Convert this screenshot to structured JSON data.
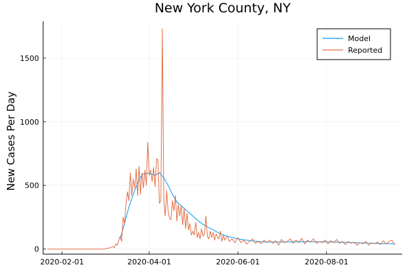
{
  "chart_data": {
    "type": "line",
    "title": "New York County, NY",
    "xlabel": "",
    "ylabel": "New Cases Per Day",
    "x_axis_type": "date",
    "xlim": [
      "2020-01-19",
      "2020-09-22"
    ],
    "ylim": [
      -40,
      1790
    ],
    "x_ticks": [
      "2020-02-01",
      "2020-04-01",
      "2020-06-01",
      "2020-08-01"
    ],
    "y_ticks": [
      0,
      500,
      1000,
      1500
    ],
    "grid": true,
    "legend": "top-right",
    "colors": {
      "Model": "#009af9",
      "Reported": "#e26f46"
    },
    "series": [
      {
        "name": "Model",
        "points": [
          [
            "2020-03-12",
            80
          ],
          [
            "2020-03-15",
            200
          ],
          [
            "2020-03-18",
            330
          ],
          [
            "2020-03-21",
            430
          ],
          [
            "2020-03-24",
            520
          ],
          [
            "2020-03-27",
            585
          ],
          [
            "2020-03-30",
            595
          ],
          [
            "2020-04-02",
            590
          ],
          [
            "2020-04-05",
            580
          ],
          [
            "2020-04-08",
            600
          ],
          [
            "2020-04-11",
            560
          ],
          [
            "2020-04-14",
            500
          ],
          [
            "2020-04-17",
            430
          ],
          [
            "2020-04-20",
            370
          ],
          [
            "2020-04-24",
            330
          ],
          [
            "2020-04-28",
            290
          ],
          [
            "2020-05-02",
            250
          ],
          [
            "2020-05-06",
            210
          ],
          [
            "2020-05-10",
            180
          ],
          [
            "2020-05-15",
            150
          ],
          [
            "2020-05-20",
            120
          ],
          [
            "2020-05-25",
            100
          ],
          [
            "2020-06-01",
            80
          ],
          [
            "2020-06-10",
            65
          ],
          [
            "2020-06-20",
            55
          ],
          [
            "2020-07-01",
            55
          ],
          [
            "2020-07-15",
            58
          ],
          [
            "2020-08-01",
            57
          ],
          [
            "2020-08-15",
            52
          ],
          [
            "2020-09-01",
            45
          ],
          [
            "2020-09-10",
            42
          ],
          [
            "2020-09-17",
            42
          ]
        ]
      },
      {
        "name": "Reported",
        "points": [
          [
            "2020-01-22",
            0
          ],
          [
            "2020-02-01",
            0
          ],
          [
            "2020-02-15",
            0
          ],
          [
            "2020-03-01",
            0
          ],
          [
            "2020-03-03",
            5
          ],
          [
            "2020-03-05",
            10
          ],
          [
            "2020-03-07",
            20
          ],
          [
            "2020-03-08",
            10
          ],
          [
            "2020-03-09",
            40
          ],
          [
            "2020-03-10",
            30
          ],
          [
            "2020-03-11",
            70
          ],
          [
            "2020-03-12",
            100
          ],
          [
            "2020-03-13",
            60
          ],
          [
            "2020-03-14",
            250
          ],
          [
            "2020-03-15",
            200
          ],
          [
            "2020-03-16",
            350
          ],
          [
            "2020-03-17",
            450
          ],
          [
            "2020-03-18",
            380
          ],
          [
            "2020-03-19",
            600
          ],
          [
            "2020-03-20",
            420
          ],
          [
            "2020-03-21",
            550
          ],
          [
            "2020-03-22",
            480
          ],
          [
            "2020-03-23",
            630
          ],
          [
            "2020-03-24",
            420
          ],
          [
            "2020-03-25",
            650
          ],
          [
            "2020-03-26",
            430
          ],
          [
            "2020-03-27",
            600
          ],
          [
            "2020-03-28",
            480
          ],
          [
            "2020-03-29",
            620
          ],
          [
            "2020-03-30",
            500
          ],
          [
            "2020-03-31",
            840
          ],
          [
            "2020-04-01",
            580
          ],
          [
            "2020-04-02",
            620
          ],
          [
            "2020-04-03",
            530
          ],
          [
            "2020-04-04",
            640
          ],
          [
            "2020-04-05",
            490
          ],
          [
            "2020-04-06",
            710
          ],
          [
            "2020-04-07",
            700
          ],
          [
            "2020-04-08",
            360
          ],
          [
            "2020-04-09",
            380
          ],
          [
            "2020-04-10",
            1730
          ],
          [
            "2020-04-11",
            380
          ],
          [
            "2020-04-12",
            260
          ],
          [
            "2020-04-13",
            460
          ],
          [
            "2020-04-14",
            300
          ],
          [
            "2020-04-15",
            240
          ],
          [
            "2020-04-16",
            230
          ],
          [
            "2020-04-17",
            380
          ],
          [
            "2020-04-18",
            300
          ],
          [
            "2020-04-19",
            420
          ],
          [
            "2020-04-20",
            220
          ],
          [
            "2020-04-21",
            350
          ],
          [
            "2020-04-22",
            260
          ],
          [
            "2020-04-23",
            340
          ],
          [
            "2020-04-24",
            190
          ],
          [
            "2020-04-25",
            320
          ],
          [
            "2020-04-26",
            160
          ],
          [
            "2020-04-27",
            280
          ],
          [
            "2020-04-28",
            150
          ],
          [
            "2020-04-29",
            200
          ],
          [
            "2020-04-30",
            110
          ],
          [
            "2020-05-01",
            140
          ],
          [
            "2020-05-02",
            110
          ],
          [
            "2020-05-03",
            210
          ],
          [
            "2020-05-04",
            90
          ],
          [
            "2020-05-05",
            130
          ],
          [
            "2020-05-06",
            80
          ],
          [
            "2020-05-07",
            160
          ],
          [
            "2020-05-08",
            100
          ],
          [
            "2020-05-09",
            120
          ],
          [
            "2020-05-10",
            260
          ],
          [
            "2020-05-11",
            100
          ],
          [
            "2020-05-12",
            80
          ],
          [
            "2020-05-13",
            140
          ],
          [
            "2020-05-14",
            90
          ],
          [
            "2020-05-15",
            130
          ],
          [
            "2020-05-16",
            70
          ],
          [
            "2020-05-17",
            120
          ],
          [
            "2020-05-18",
            90
          ],
          [
            "2020-05-19",
            80
          ],
          [
            "2020-05-20",
            140
          ],
          [
            "2020-05-21",
            60
          ],
          [
            "2020-05-22",
            110
          ],
          [
            "2020-05-23",
            70
          ],
          [
            "2020-05-24",
            90
          ],
          [
            "2020-05-25",
            100
          ],
          [
            "2020-05-26",
            60
          ],
          [
            "2020-05-28",
            80
          ],
          [
            "2020-05-30",
            50
          ],
          [
            "2020-06-01",
            90
          ],
          [
            "2020-06-03",
            50
          ],
          [
            "2020-06-05",
            70
          ],
          [
            "2020-06-07",
            40
          ],
          [
            "2020-06-09",
            60
          ],
          [
            "2020-06-11",
            80
          ],
          [
            "2020-06-13",
            45
          ],
          [
            "2020-06-15",
            60
          ],
          [
            "2020-06-17",
            40
          ],
          [
            "2020-06-19",
            70
          ],
          [
            "2020-06-21",
            50
          ],
          [
            "2020-06-23",
            70
          ],
          [
            "2020-06-25",
            45
          ],
          [
            "2020-06-27",
            65
          ],
          [
            "2020-06-29",
            30
          ],
          [
            "2020-07-01",
            75
          ],
          [
            "2020-07-03",
            50
          ],
          [
            "2020-07-05",
            60
          ],
          [
            "2020-07-07",
            80
          ],
          [
            "2020-07-09",
            45
          ],
          [
            "2020-07-11",
            70
          ],
          [
            "2020-07-13",
            50
          ],
          [
            "2020-07-15",
            85
          ],
          [
            "2020-07-17",
            40
          ],
          [
            "2020-07-19",
            70
          ],
          [
            "2020-07-21",
            55
          ],
          [
            "2020-07-23",
            80
          ],
          [
            "2020-07-25",
            45
          ],
          [
            "2020-07-27",
            60
          ],
          [
            "2020-07-29",
            50
          ],
          [
            "2020-07-31",
            70
          ],
          [
            "2020-08-02",
            40
          ],
          [
            "2020-08-04",
            65
          ],
          [
            "2020-08-06",
            50
          ],
          [
            "2020-08-08",
            75
          ],
          [
            "2020-08-10",
            45
          ],
          [
            "2020-08-12",
            60
          ],
          [
            "2020-08-14",
            35
          ],
          [
            "2020-08-16",
            60
          ],
          [
            "2020-08-18",
            45
          ],
          [
            "2020-08-20",
            55
          ],
          [
            "2020-08-22",
            30
          ],
          [
            "2020-08-24",
            50
          ],
          [
            "2020-08-26",
            40
          ],
          [
            "2020-08-28",
            60
          ],
          [
            "2020-08-30",
            30
          ],
          [
            "2020-09-01",
            50
          ],
          [
            "2020-09-03",
            40
          ],
          [
            "2020-09-05",
            55
          ],
          [
            "2020-09-07",
            35
          ],
          [
            "2020-09-09",
            65
          ],
          [
            "2020-09-11",
            40
          ],
          [
            "2020-09-13",
            60
          ],
          [
            "2020-09-15",
            70
          ],
          [
            "2020-09-17",
            30
          ]
        ]
      }
    ]
  }
}
